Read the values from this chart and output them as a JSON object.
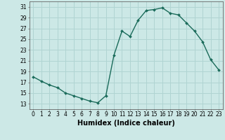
{
  "x": [
    0,
    1,
    2,
    3,
    4,
    5,
    6,
    7,
    8,
    9,
    10,
    11,
    12,
    13,
    14,
    15,
    16,
    17,
    18,
    19,
    20,
    21,
    22,
    23
  ],
  "y": [
    18.0,
    17.2,
    16.5,
    16.0,
    15.0,
    14.5,
    14.0,
    13.5,
    13.2,
    14.5,
    22.0,
    26.5,
    25.5,
    28.5,
    30.3,
    30.5,
    30.8,
    29.8,
    29.5,
    28.0,
    26.5,
    24.5,
    21.2,
    19.3
  ],
  "line_color": "#1a6b5a",
  "marker": "D",
  "marker_size": 2,
  "bg_color": "#cce8e6",
  "grid_color": "#b0d4d2",
  "xlabel": "Humidex (Indice chaleur)",
  "xlim": [
    -0.5,
    23.5
  ],
  "ylim": [
    12,
    32
  ],
  "yticks": [
    13,
    15,
    17,
    19,
    21,
    23,
    25,
    27,
    29,
    31
  ],
  "xticks": [
    0,
    1,
    2,
    3,
    4,
    5,
    6,
    7,
    8,
    9,
    10,
    11,
    12,
    13,
    14,
    15,
    16,
    17,
    18,
    19,
    20,
    21,
    22,
    23
  ],
  "tick_fontsize": 5.5,
  "xlabel_fontsize": 7,
  "line_width": 1.0
}
